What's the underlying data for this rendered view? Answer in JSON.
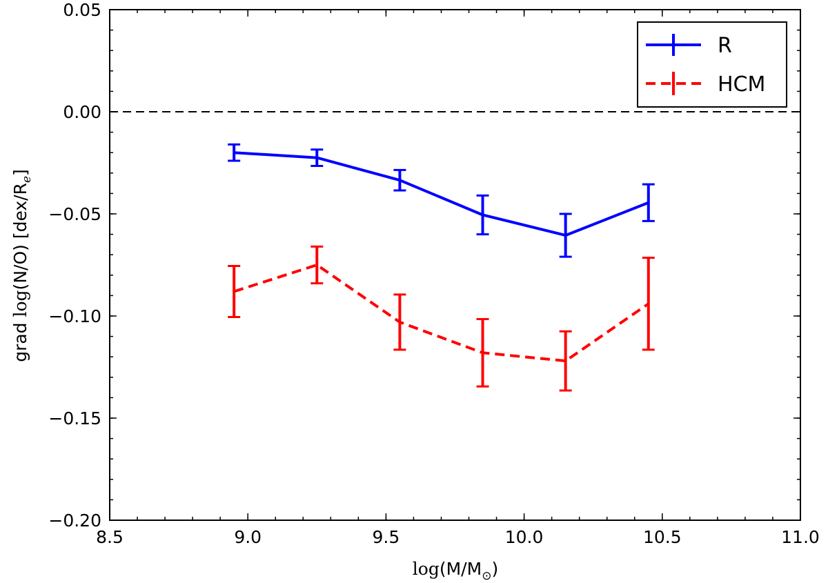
{
  "chart_data": {
    "type": "line",
    "title": "",
    "xlabel": {
      "prefix": "log",
      "text": "(M/M",
      "sub": "⊙",
      "suffix": ")"
    },
    "ylabel": {
      "prefix": "grad ",
      "log": "log",
      "text": "(N/O) [dex/R",
      "sub": "e",
      "suffix": "]"
    },
    "xlim": [
      8.5,
      11.0
    ],
    "ylim": [
      -0.2,
      0.05
    ],
    "xticks": [
      8.5,
      9.0,
      9.5,
      10.0,
      10.5,
      11.0
    ],
    "xtick_labels": [
      "8.5",
      "9.0",
      "9.5",
      "10.0",
      "10.5",
      "11.0"
    ],
    "yticks": [
      -0.2,
      -0.15,
      -0.1,
      -0.05,
      0.0,
      0.05
    ],
    "ytick_labels": [
      "−0.20",
      "−0.15",
      "−0.10",
      "−0.05",
      "0.00",
      "0.05"
    ],
    "x_minor_step": 0.1,
    "y_minor_step": 0.01,
    "reference_line": {
      "y": 0.0,
      "style": "dashed",
      "color": "#000000"
    },
    "legend": {
      "position": "top-right"
    },
    "series": [
      {
        "name": "R",
        "color": "#0000ff",
        "linestyle": "solid",
        "x": [
          8.95,
          9.25,
          9.55,
          9.85,
          10.15,
          10.45
        ],
        "y": [
          -0.02,
          -0.0225,
          -0.0335,
          -0.0505,
          -0.0605,
          -0.0445
        ],
        "yerr": [
          0.004,
          0.004,
          0.005,
          0.0095,
          0.0105,
          0.009
        ]
      },
      {
        "name": "HCM",
        "color": "#ff0000",
        "linestyle": "dashed",
        "x": [
          8.95,
          9.25,
          9.55,
          9.85,
          10.15,
          10.45
        ],
        "y": [
          -0.088,
          -0.075,
          -0.103,
          -0.118,
          -0.122,
          -0.094
        ],
        "yerr": [
          0.0125,
          0.009,
          0.0135,
          0.0165,
          0.0145,
          0.0225
        ]
      }
    ]
  }
}
